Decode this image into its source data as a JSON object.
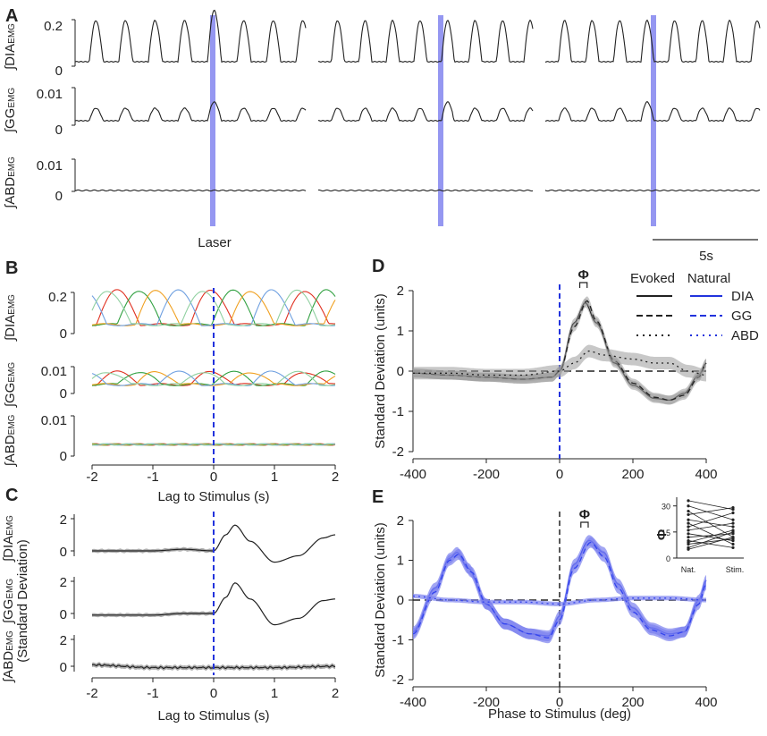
{
  "colors": {
    "laser": "#8a8cf0",
    "dash_blue": "#2233dd",
    "dia_blue": "#3344ee",
    "band_blue": "#7a80ee",
    "black": "#222222",
    "gray_band": "#9a9a9a"
  },
  "panel_A": {
    "letter": "A",
    "rows": [
      {
        "name": "DIA",
        "label_main": "∫DIA",
        "label_sub": "EMG",
        "ticks": [
          "0.2",
          "0"
        ]
      },
      {
        "name": "GG",
        "label_main": "∫GG",
        "label_sub": "EMG",
        "ticks": [
          "0.01",
          "0"
        ]
      },
      {
        "name": "ABD",
        "label_main": "∫ABD",
        "label_sub": "EMG",
        "ticks": [
          "0.01",
          "0"
        ]
      }
    ],
    "laser_label": "Laser",
    "scale_bar_label": "5s"
  },
  "panel_B": {
    "letter": "B",
    "rows": [
      {
        "label_main": "∫DIA",
        "label_sub": "EMG",
        "ticks": [
          "0.2",
          "0"
        ]
      },
      {
        "label_main": "∫GG",
        "label_sub": "EMG",
        "ticks": [
          "0.01",
          "0"
        ]
      },
      {
        "label_main": "∫ABD",
        "label_sub": "EMG",
        "ticks": [
          "0.01",
          "0"
        ]
      }
    ],
    "xticks": [
      "-2",
      "-1",
      "0",
      "1",
      "2"
    ],
    "xlabel": "Lag to Stimulus (s)",
    "trace_colors": [
      "#e03020",
      "#30a040",
      "#f0a020",
      "#6fa0e0",
      "#90d0a0"
    ]
  },
  "panel_C": {
    "letter": "C",
    "rows": [
      {
        "label_main": "∫DIA",
        "label_sub": "EMG",
        "ticks": [
          "2",
          "0"
        ]
      },
      {
        "label_main": "∫GG",
        "label_sub": "EMG",
        "ticks": [
          "2",
          "0"
        ]
      },
      {
        "label_main": "∫ABD",
        "label_sub": "EMG",
        "ticks": [
          "2",
          "0"
        ]
      }
    ],
    "ylabel_extra": "(Standard Deviation)",
    "xticks": [
      "-2",
      "-1",
      "0",
      "1",
      "2"
    ],
    "xlabel": "Lag to Stimulus (s)"
  },
  "panel_D": {
    "letter": "D",
    "ylabel": "Standard Deviation (units)",
    "yticks": [
      "2",
      "1",
      "0",
      "-1",
      "-2"
    ],
    "xticks": [
      "-400",
      "-200",
      "0",
      "200",
      "400"
    ],
    "phi": "Φ",
    "legend": {
      "col_evoked": "Evoked",
      "col_natural": "Natural",
      "items": [
        "DIA",
        "GG",
        "ABD"
      ]
    }
  },
  "panel_E": {
    "letter": "E",
    "ylabel": "Standard Deviation (units)",
    "xlabel": "Phase to Stimulus (deg)",
    "yticks": [
      "2",
      "1",
      "0",
      "-1",
      "-2"
    ],
    "xticks": [
      "-400",
      "-200",
      "0",
      "200",
      "400"
    ],
    "phi": "Φ",
    "inset": {
      "ylabel": "Φ",
      "yticks": [
        "30",
        "15",
        "0"
      ],
      "xticks": [
        "Nat.",
        "Stim."
      ]
    }
  },
  "chart_data": [
    {
      "panel": "A",
      "type": "line",
      "title": "",
      "xlabel": "",
      "scale_bar": "5s",
      "annotations": [
        "Laser"
      ],
      "series": [
        {
          "name": "∫DIA EMG",
          "ylim": [
            0,
            0.2
          ],
          "peak": 0.16,
          "stim_peak": 0.21
        },
        {
          "name": "∫GG EMG",
          "ylim": [
            0,
            0.01
          ],
          "peak": 0.0035,
          "stim_peak": 0.005
        },
        {
          "name": "∫ABD EMG",
          "ylim": [
            0,
            0.01
          ],
          "baseline": 0.0007
        }
      ],
      "segments": 3,
      "breaths_per_segment": 8,
      "laser_breath_index": 4
    },
    {
      "panel": "B",
      "type": "line",
      "xlabel": "Lag to Stimulus (s)",
      "xlim": [
        -2,
        2
      ],
      "series": [
        {
          "name": "∫DIA EMG",
          "ylim": [
            0,
            0.2
          ],
          "peak": 0.17
        },
        {
          "name": "∫GG EMG",
          "ylim": [
            0,
            0.01
          ],
          "peak": 0.006
        },
        {
          "name": "∫ABD EMG",
          "ylim": [
            0,
            0.01
          ],
          "baseline": 0.0007
        }
      ],
      "trace_offsets_s": [
        -1.75,
        -1.4,
        -1.1,
        -0.75,
        -0.35
      ]
    },
    {
      "panel": "C",
      "type": "line",
      "xlabel": "Lag to Stimulus (s)",
      "ylabel": "(Standard Deviation)",
      "xlim": [
        -2,
        2
      ],
      "series": [
        {
          "name": "∫DIA EMG",
          "x": [
            -2,
            -1,
            -0.5,
            0,
            0.2,
            0.35,
            0.6,
            1.0,
            1.4,
            1.8,
            2.0
          ],
          "y": [
            0,
            0,
            0.1,
            0,
            1.0,
            1.6,
            0.6,
            -0.7,
            -0.3,
            0.8,
            1.0
          ]
        },
        {
          "name": "∫GG EMG",
          "x": [
            -2,
            -1,
            -0.5,
            0,
            0.2,
            0.35,
            0.6,
            1.0,
            1.4,
            1.8,
            2.0
          ],
          "y": [
            -0.1,
            -0.1,
            0.0,
            0.0,
            1.0,
            1.9,
            0.9,
            -0.7,
            -0.3,
            0.8,
            0.9
          ]
        },
        {
          "name": "∫ABD EMG",
          "x": [
            -2,
            -1,
            0,
            1,
            2
          ],
          "y": [
            0.1,
            -0.1,
            -0.1,
            -0.1,
            0.0
          ]
        }
      ]
    },
    {
      "panel": "D",
      "type": "line",
      "ylabel": "Standard Deviation (units)",
      "xlim": [
        -400,
        400
      ],
      "ylim": [
        -2,
        2
      ],
      "series": [
        {
          "name": "DIA Evoked",
          "x": [
            -400,
            -300,
            -200,
            -100,
            -20,
            0,
            40,
            70,
            100,
            150,
            200,
            260,
            300,
            340,
            380,
            400
          ],
          "y": [
            -0.05,
            -0.1,
            -0.15,
            -0.2,
            -0.15,
            0.0,
            1.2,
            1.7,
            1.2,
            0.2,
            -0.35,
            -0.68,
            -0.72,
            -0.55,
            -0.1,
            0.2
          ]
        },
        {
          "name": "GG Evoked",
          "x": [
            -400,
            -300,
            -200,
            -100,
            -20,
            0,
            40,
            75,
            100,
            150,
            200,
            260,
            300,
            340,
            380,
            400
          ],
          "y": [
            -0.05,
            -0.1,
            -0.15,
            -0.2,
            -0.15,
            0.0,
            1.1,
            1.75,
            1.25,
            0.25,
            -0.3,
            -0.65,
            -0.72,
            -0.6,
            -0.15,
            0.2
          ]
        },
        {
          "name": "ABD Evoked",
          "x": [
            -400,
            -300,
            -200,
            -100,
            0,
            40,
            80,
            120,
            200,
            260,
            300,
            350,
            400
          ],
          "y": [
            -0.05,
            -0.05,
            -0.1,
            -0.1,
            0.0,
            0.2,
            0.5,
            0.4,
            0.3,
            0.2,
            0.2,
            0.0,
            -0.1
          ]
        }
      ],
      "hline": 0,
      "vline": 0,
      "legend": [
        "Evoked",
        "Natural",
        "DIA",
        "GG",
        "ABD"
      ]
    },
    {
      "panel": "E",
      "type": "line",
      "ylabel": "Standard Deviation (units)",
      "xlabel": "Phase to Stimulus (deg)",
      "xlim": [
        -400,
        400
      ],
      "ylim": [
        -2,
        2
      ],
      "series": [
        {
          "name": "DIA Natural",
          "x": [
            -400,
            -340,
            -300,
            -280,
            -250,
            -200,
            -150,
            -80,
            -30,
            0,
            40,
            80,
            120,
            160,
            200,
            250,
            300,
            340,
            380,
            400
          ],
          "y": [
            -0.8,
            0.3,
            1.05,
            1.2,
            0.8,
            -0.1,
            -0.6,
            -0.85,
            -0.9,
            -0.4,
            0.9,
            1.5,
            1.2,
            0.4,
            -0.2,
            -0.7,
            -0.85,
            -0.8,
            0.0,
            0.5
          ]
        },
        {
          "name": "GG Natural",
          "x": [
            -400,
            -340,
            -300,
            -275,
            -240,
            -200,
            -150,
            -80,
            -30,
            0,
            40,
            85,
            120,
            160,
            200,
            250,
            300,
            340,
            380,
            400
          ],
          "y": [
            -0.85,
            0.2,
            1.0,
            1.15,
            0.7,
            -0.1,
            -0.6,
            -0.85,
            -0.95,
            -0.5,
            0.8,
            1.45,
            1.1,
            0.3,
            -0.3,
            -0.75,
            -0.9,
            -0.8,
            -0.1,
            0.4
          ]
        },
        {
          "name": "ABD Natural",
          "x": [
            -400,
            -300,
            -200,
            -100,
            0,
            100,
            200,
            300,
            400
          ],
          "y": [
            0.1,
            0.0,
            -0.05,
            -0.05,
            -0.1,
            0.0,
            0.05,
            0.05,
            0.0
          ]
        }
      ],
      "hline": 0,
      "vline": 0
    },
    {
      "panel": "E-inset",
      "type": "line",
      "ylabel": "Φ",
      "categories": [
        "Nat.",
        "Stim."
      ],
      "ylim": [
        0,
        35
      ],
      "pairs": [
        [
          33,
          28
        ],
        [
          30,
          22
        ],
        [
          27,
          12
        ],
        [
          25,
          29
        ],
        [
          22,
          18
        ],
        [
          20,
          8
        ],
        [
          18,
          26
        ],
        [
          16,
          20
        ],
        [
          14,
          10
        ],
        [
          12,
          14
        ],
        [
          10,
          6
        ],
        [
          9,
          16
        ],
        [
          8,
          11
        ],
        [
          6,
          15
        ],
        [
          5,
          12
        ]
      ]
    }
  ]
}
